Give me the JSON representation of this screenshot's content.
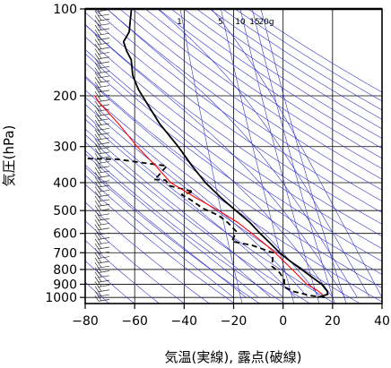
{
  "chart_data": {
    "type": "line",
    "title": "",
    "xlabel": "気温(実線), 露点(破線)",
    "ylabel": "気圧(hPa)",
    "xlim": [
      -80,
      40
    ],
    "ylim": [
      1050,
      100
    ],
    "yscale": "log",
    "grid": true,
    "x_ticks": [
      -80,
      -60,
      -40,
      -20,
      0,
      20,
      40
    ],
    "x_tick_labels": [
      "−80",
      "−60",
      "−40",
      "−20",
      "0",
      "20",
      "40"
    ],
    "y_ticks": [
      100,
      200,
      300,
      400,
      500,
      600,
      700,
      800,
      900,
      1000
    ],
    "y_tick_labels": [
      "100",
      "200",
      "300",
      "400",
      "500",
      "600",
      "700",
      "800",
      "900",
      "1000"
    ],
    "mixing_ratio_labels": [
      "1",
      "5",
      "10",
      "15",
      "20g"
    ],
    "series": [
      {
        "style": "solid",
        "color": "#000000",
        "points": [
          [
            -61.3,
            100
          ],
          [
            -61.8,
            110
          ],
          [
            -62.2,
            120
          ],
          [
            -64.5,
            130
          ],
          [
            -63.2,
            140
          ],
          [
            -61.4,
            150
          ],
          [
            -60.8,
            170
          ],
          [
            -58.5,
            190
          ],
          [
            -55.4,
            210
          ],
          [
            -49.9,
            250
          ],
          [
            -42.4,
            300
          ],
          [
            -36.8,
            350
          ],
          [
            -31.4,
            400
          ],
          [
            -25.3,
            450
          ],
          [
            -19.1,
            500
          ],
          [
            -13.4,
            550
          ],
          [
            -9.3,
            600
          ],
          [
            -5.1,
            650
          ],
          [
            -1.4,
            700
          ],
          [
            3.0,
            750
          ],
          [
            7.5,
            800
          ],
          [
            11.6,
            850
          ],
          [
            15.6,
            900
          ],
          [
            17.8,
            950
          ],
          [
            18.1,
            975
          ],
          [
            14.0,
            1000
          ]
        ]
      },
      {
        "style": "dashed",
        "color": "#000000",
        "points": [
          [
            -79.0,
            330
          ],
          [
            -67.0,
            332
          ],
          [
            -52.6,
            345
          ],
          [
            -47.0,
            350
          ],
          [
            -50.6,
            380
          ],
          [
            -52.2,
            390
          ],
          [
            -47.5,
            392
          ],
          [
            -46.0,
            410
          ],
          [
            -36.2,
            430
          ],
          [
            -41.0,
            440
          ],
          [
            -37.2,
            460
          ],
          [
            -32.6,
            490
          ],
          [
            -26.0,
            520
          ],
          [
            -22.4,
            550
          ],
          [
            -19.0,
            590
          ],
          [
            -20.6,
            640
          ],
          [
            -12.5,
            660
          ],
          [
            -4.0,
            700
          ],
          [
            -4.5,
            780
          ],
          [
            -1.4,
            820
          ],
          [
            0.5,
            870
          ],
          [
            0.5,
            920
          ],
          [
            4.5,
            955
          ],
          [
            11.0,
            985
          ],
          [
            17.0,
            1000
          ]
        ]
      },
      {
        "style": "solid",
        "color": "#ff0000",
        "points": [
          [
            -76.0,
            200
          ],
          [
            -74.6,
            210
          ],
          [
            -66.5,
            250
          ],
          [
            -59.0,
            300
          ],
          [
            -51.5,
            350
          ],
          [
            -45.4,
            400
          ],
          [
            -35.6,
            450
          ],
          [
            -26.1,
            500
          ],
          [
            -18.3,
            550
          ],
          [
            -12.6,
            600
          ],
          [
            -7.6,
            650
          ],
          [
            -3.2,
            700
          ],
          [
            3.7,
            800
          ],
          [
            9.6,
            900
          ],
          [
            14.2,
            950
          ],
          [
            16.0,
            980
          ]
        ]
      }
    ],
    "background_lines": [
      {
        "name": "isotherms",
        "color": "#000000"
      },
      {
        "name": "dry-adiabats",
        "color": "#3333cc"
      },
      {
        "name": "moist-adiabats",
        "color": "#3333cc"
      },
      {
        "name": "mixing-ratio-lines",
        "color": "#3333cc"
      }
    ],
    "wind_barbs": true
  }
}
